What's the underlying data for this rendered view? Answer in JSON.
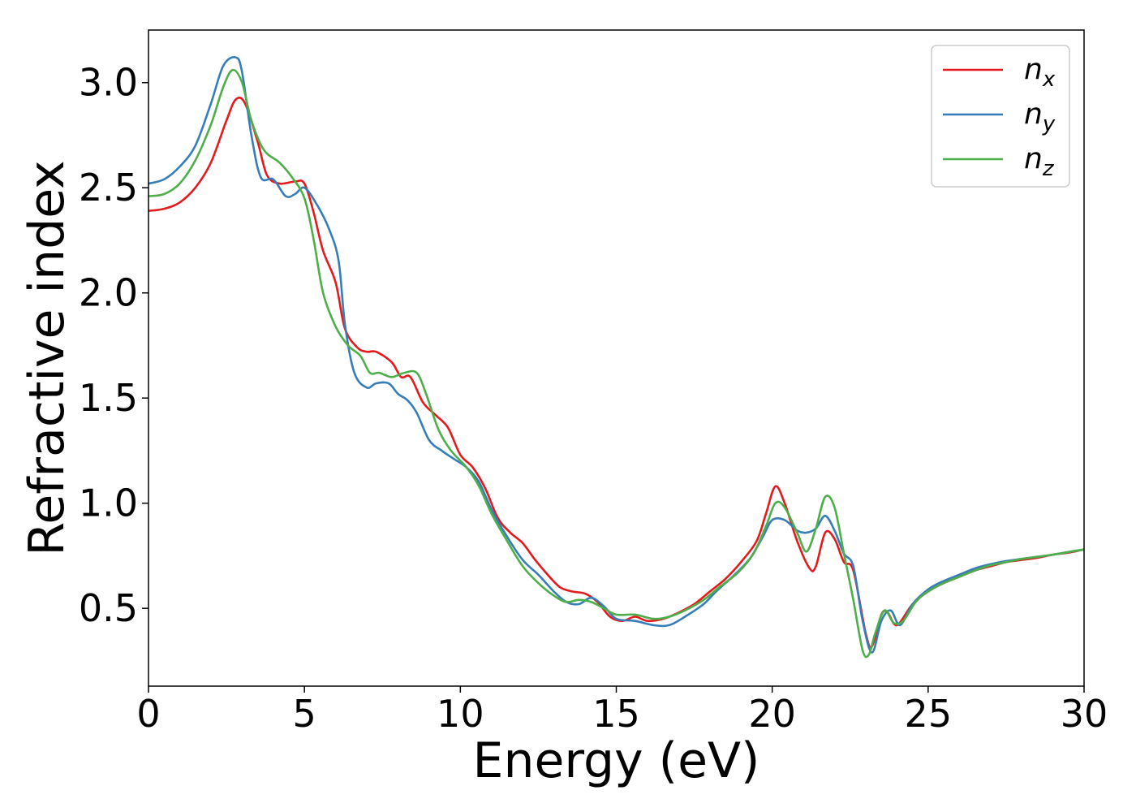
{
  "chart_data": {
    "type": "line",
    "title": "",
    "xlabel": "Energy (eV)",
    "ylabel": "Refractive index",
    "xlim": [
      0,
      30
    ],
    "ylim": [
      0.13,
      3.25
    ],
    "xticks": [
      0,
      5,
      10,
      15,
      20,
      25,
      30
    ],
    "xtick_labels": [
      "0",
      "5",
      "10",
      "15",
      "20",
      "25",
      "30"
    ],
    "yticks": [
      0.5,
      1.0,
      1.5,
      2.0,
      2.5,
      3.0
    ],
    "ytick_labels": [
      "0.5",
      "1.0",
      "1.5",
      "2.0",
      "2.5",
      "3.0"
    ],
    "grid": false,
    "legend_position": "top-right",
    "series": [
      {
        "name": "n_x",
        "label_base": "n",
        "label_sub": "x",
        "color": "#e41a1c",
        "points": [
          [
            0,
            2.39
          ],
          [
            0.5,
            2.4
          ],
          [
            1,
            2.43
          ],
          [
            1.5,
            2.5
          ],
          [
            2,
            2.62
          ],
          [
            2.5,
            2.82
          ],
          [
            2.8,
            2.92
          ],
          [
            3.1,
            2.9
          ],
          [
            3.5,
            2.72
          ],
          [
            3.8,
            2.56
          ],
          [
            4.2,
            2.52
          ],
          [
            4.7,
            2.53
          ],
          [
            5.0,
            2.52
          ],
          [
            5.3,
            2.38
          ],
          [
            5.6,
            2.2
          ],
          [
            6.0,
            2.05
          ],
          [
            6.3,
            1.83
          ],
          [
            6.7,
            1.74
          ],
          [
            7.0,
            1.72
          ],
          [
            7.3,
            1.72
          ],
          [
            7.8,
            1.67
          ],
          [
            8.1,
            1.6
          ],
          [
            8.4,
            1.6
          ],
          [
            8.8,
            1.48
          ],
          [
            9.2,
            1.42
          ],
          [
            9.6,
            1.36
          ],
          [
            10,
            1.23
          ],
          [
            10.4,
            1.17
          ],
          [
            10.8,
            1.07
          ],
          [
            11.2,
            0.93
          ],
          [
            11.6,
            0.86
          ],
          [
            12,
            0.81
          ],
          [
            12.4,
            0.73
          ],
          [
            12.8,
            0.66
          ],
          [
            13.2,
            0.6
          ],
          [
            13.6,
            0.58
          ],
          [
            14,
            0.57
          ],
          [
            14.4,
            0.53
          ],
          [
            14.8,
            0.46
          ],
          [
            15.2,
            0.44
          ],
          [
            15.6,
            0.46
          ],
          [
            16,
            0.44
          ],
          [
            16.5,
            0.45
          ],
          [
            17,
            0.48
          ],
          [
            17.5,
            0.52
          ],
          [
            18,
            0.58
          ],
          [
            18.5,
            0.64
          ],
          [
            19,
            0.72
          ],
          [
            19.5,
            0.82
          ],
          [
            19.8,
            0.95
          ],
          [
            20.1,
            1.08
          ],
          [
            20.4,
            1.0
          ],
          [
            20.8,
            0.82
          ],
          [
            21.2,
            0.69
          ],
          [
            21.4,
            0.7
          ],
          [
            21.7,
            0.86
          ],
          [
            22.0,
            0.83
          ],
          [
            22.3,
            0.72
          ],
          [
            22.6,
            0.68
          ],
          [
            23.0,
            0.38
          ],
          [
            23.2,
            0.32
          ],
          [
            23.5,
            0.47
          ],
          [
            23.7,
            0.48
          ],
          [
            24.0,
            0.42
          ],
          [
            24.5,
            0.52
          ],
          [
            25,
            0.58
          ],
          [
            25.5,
            0.62
          ],
          [
            26,
            0.65
          ],
          [
            26.5,
            0.68
          ],
          [
            27,
            0.7
          ],
          [
            27.5,
            0.72
          ],
          [
            28,
            0.73
          ],
          [
            28.5,
            0.74
          ],
          [
            29,
            0.755
          ],
          [
            29.5,
            0.765
          ],
          [
            30,
            0.78
          ]
        ]
      },
      {
        "name": "n_y",
        "label_base": "n",
        "label_sub": "y",
        "color": "#377eb8",
        "points": [
          [
            0,
            2.52
          ],
          [
            0.5,
            2.54
          ],
          [
            1,
            2.6
          ],
          [
            1.5,
            2.7
          ],
          [
            2,
            2.9
          ],
          [
            2.4,
            3.08
          ],
          [
            2.8,
            3.12
          ],
          [
            3.0,
            3.05
          ],
          [
            3.3,
            2.75
          ],
          [
            3.6,
            2.55
          ],
          [
            4.0,
            2.54
          ],
          [
            4.4,
            2.46
          ],
          [
            4.7,
            2.47
          ],
          [
            5.0,
            2.5
          ],
          [
            5.4,
            2.42
          ],
          [
            5.8,
            2.3
          ],
          [
            6.1,
            2.15
          ],
          [
            6.3,
            1.85
          ],
          [
            6.6,
            1.62
          ],
          [
            7.0,
            1.55
          ],
          [
            7.3,
            1.57
          ],
          [
            7.7,
            1.57
          ],
          [
            8.0,
            1.52
          ],
          [
            8.3,
            1.49
          ],
          [
            8.6,
            1.43
          ],
          [
            9.0,
            1.3
          ],
          [
            9.4,
            1.25
          ],
          [
            9.8,
            1.21
          ],
          [
            10.2,
            1.17
          ],
          [
            10.6,
            1.1
          ],
          [
            11.0,
            0.97
          ],
          [
            11.5,
            0.84
          ],
          [
            12,
            0.73
          ],
          [
            12.5,
            0.66
          ],
          [
            13,
            0.58
          ],
          [
            13.4,
            0.53
          ],
          [
            13.8,
            0.52
          ],
          [
            14.2,
            0.55
          ],
          [
            14.6,
            0.51
          ],
          [
            15,
            0.45
          ],
          [
            15.6,
            0.44
          ],
          [
            16.2,
            0.42
          ],
          [
            16.7,
            0.42
          ],
          [
            17.2,
            0.46
          ],
          [
            17.8,
            0.52
          ],
          [
            18.2,
            0.58
          ],
          [
            18.8,
            0.66
          ],
          [
            19.3,
            0.74
          ],
          [
            19.7,
            0.84
          ],
          [
            20.0,
            0.92
          ],
          [
            20.4,
            0.92
          ],
          [
            20.8,
            0.87
          ],
          [
            21.1,
            0.86
          ],
          [
            21.4,
            0.88
          ],
          [
            21.7,
            0.94
          ],
          [
            22.0,
            0.87
          ],
          [
            22.3,
            0.76
          ],
          [
            22.6,
            0.7
          ],
          [
            22.9,
            0.44
          ],
          [
            23.2,
            0.29
          ],
          [
            23.5,
            0.44
          ],
          [
            23.8,
            0.49
          ],
          [
            24.1,
            0.42
          ],
          [
            24.5,
            0.52
          ],
          [
            25,
            0.59
          ],
          [
            25.5,
            0.63
          ],
          [
            26,
            0.66
          ],
          [
            26.5,
            0.69
          ],
          [
            27,
            0.71
          ],
          [
            27.5,
            0.725
          ],
          [
            28,
            0.735
          ],
          [
            28.5,
            0.745
          ],
          [
            29,
            0.755
          ],
          [
            29.5,
            0.768
          ],
          [
            30,
            0.78
          ]
        ]
      },
      {
        "name": "n_z",
        "label_base": "n",
        "label_sub": "z",
        "color": "#4daf4a",
        "points": [
          [
            0,
            2.46
          ],
          [
            0.5,
            2.47
          ],
          [
            1,
            2.52
          ],
          [
            1.5,
            2.63
          ],
          [
            2,
            2.8
          ],
          [
            2.4,
            2.98
          ],
          [
            2.7,
            3.06
          ],
          [
            3.0,
            3.0
          ],
          [
            3.3,
            2.82
          ],
          [
            3.7,
            2.68
          ],
          [
            4.2,
            2.62
          ],
          [
            4.6,
            2.55
          ],
          [
            5.0,
            2.45
          ],
          [
            5.3,
            2.25
          ],
          [
            5.6,
            2.0
          ],
          [
            6.0,
            1.84
          ],
          [
            6.4,
            1.75
          ],
          [
            6.8,
            1.7
          ],
          [
            7.1,
            1.62
          ],
          [
            7.4,
            1.62
          ],
          [
            7.8,
            1.6
          ],
          [
            8.2,
            1.62
          ],
          [
            8.6,
            1.62
          ],
          [
            8.9,
            1.52
          ],
          [
            9.3,
            1.35
          ],
          [
            9.7,
            1.25
          ],
          [
            10.2,
            1.17
          ],
          [
            10.6,
            1.08
          ],
          [
            11,
            0.95
          ],
          [
            11.5,
            0.82
          ],
          [
            12,
            0.7
          ],
          [
            12.5,
            0.62
          ],
          [
            13,
            0.56
          ],
          [
            13.4,
            0.53
          ],
          [
            13.8,
            0.54
          ],
          [
            14.2,
            0.53
          ],
          [
            14.6,
            0.5
          ],
          [
            15,
            0.47
          ],
          [
            15.6,
            0.47
          ],
          [
            16.2,
            0.45
          ],
          [
            16.7,
            0.46
          ],
          [
            17.2,
            0.49
          ],
          [
            17.8,
            0.54
          ],
          [
            18.3,
            0.6
          ],
          [
            18.9,
            0.67
          ],
          [
            19.4,
            0.76
          ],
          [
            19.8,
            0.89
          ],
          [
            20.1,
            1.0
          ],
          [
            20.4,
            0.98
          ],
          [
            20.8,
            0.86
          ],
          [
            21.1,
            0.77
          ],
          [
            21.4,
            0.88
          ],
          [
            21.7,
            1.03
          ],
          [
            22.0,
            0.98
          ],
          [
            22.3,
            0.76
          ],
          [
            22.6,
            0.54
          ],
          [
            22.9,
            0.3
          ],
          [
            23.1,
            0.28
          ],
          [
            23.3,
            0.38
          ],
          [
            23.6,
            0.49
          ],
          [
            23.9,
            0.43
          ],
          [
            24.2,
            0.44
          ],
          [
            24.6,
            0.53
          ],
          [
            25,
            0.58
          ],
          [
            25.5,
            0.62
          ],
          [
            26,
            0.65
          ],
          [
            26.5,
            0.68
          ],
          [
            27,
            0.705
          ],
          [
            27.5,
            0.72
          ],
          [
            28,
            0.735
          ],
          [
            28.5,
            0.745
          ],
          [
            29,
            0.755
          ],
          [
            29.5,
            0.768
          ],
          [
            30,
            0.78
          ]
        ]
      }
    ]
  }
}
